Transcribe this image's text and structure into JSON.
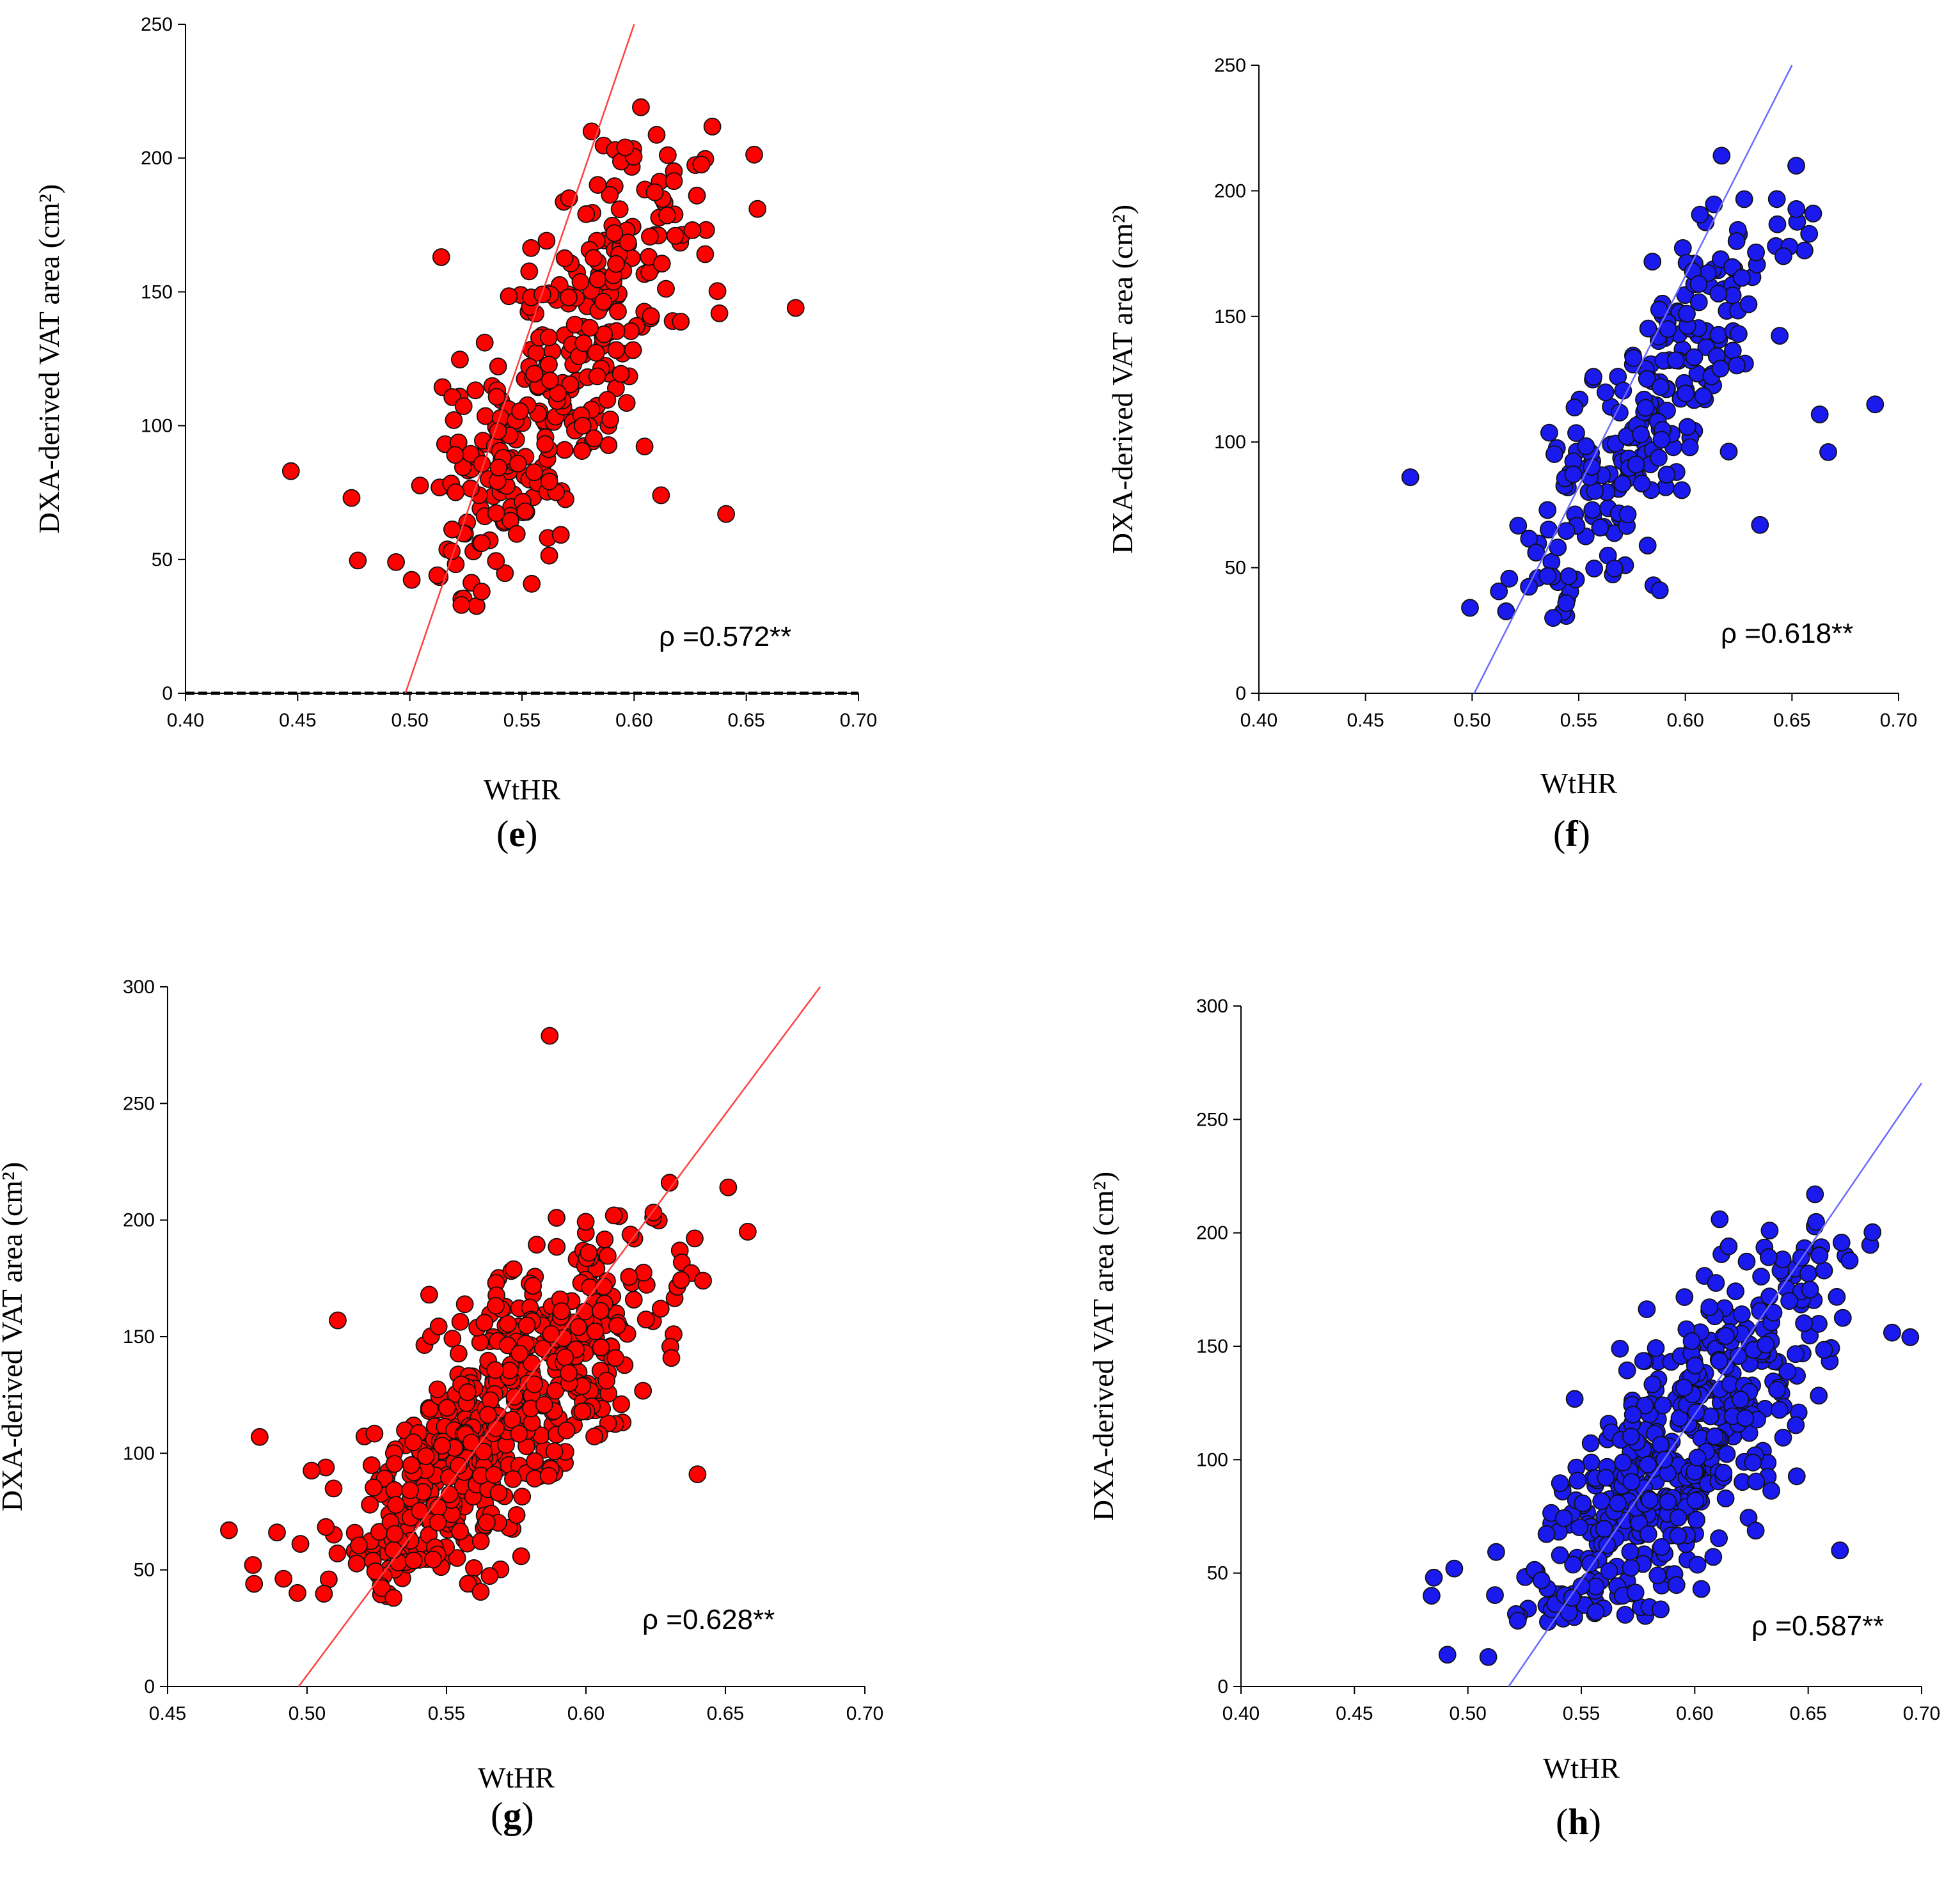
{
  "chart_data": [
    {
      "id": "e",
      "type": "scatter",
      "panel_label": "e",
      "color": "#ff0000",
      "line_color": "#ff4040",
      "xlabel": "WtHR",
      "ylabel": "DXA-derived VAT area (cm²)",
      "xlim": [
        0.4,
        0.7
      ],
      "ylim": [
        0,
        250
      ],
      "xticks": [
        "0.40",
        "0.45",
        "0.50",
        "0.55",
        "0.60",
        "0.65",
        "0.70"
      ],
      "yticks": [
        "0",
        "50",
        "100",
        "150",
        "200",
        "250"
      ],
      "annotation": "ρ =0.572**",
      "fit_line": {
        "x": [
          0.498,
          0.6
        ],
        "y": [
          0,
          250
        ]
      },
      "zero_line": true,
      "n_points": 320,
      "seed": 11,
      "cloud": {
        "x_mean": 0.565,
        "x_sd": 0.033,
        "slope": 1300,
        "intercept": -620,
        "noise_sd": 29,
        "x_min": 0.46,
        "x_max": 0.665,
        "y_min": 32,
        "y_max": 212
      },
      "points": [
        [
          0.447,
          83
        ],
        [
          0.672,
          144
        ],
        [
          0.655,
          181
        ],
        [
          0.641,
          67
        ],
        [
          0.603,
          219
        ],
        [
          0.581,
          210
        ],
        [
          0.596,
          204
        ],
        [
          0.628,
          186
        ],
        [
          0.532,
          38
        ],
        [
          0.523,
          33
        ],
        [
          0.474,
          73
        ],
        [
          0.638,
          142
        ],
        [
          0.612,
          74
        ],
        [
          0.571,
          185
        ],
        [
          0.514,
          163
        ]
      ]
    },
    {
      "id": "f",
      "type": "scatter",
      "panel_label": "f",
      "color": "#1a1aee",
      "line_color": "#6b6bff",
      "xlabel": "WtHR",
      "ylabel": "DXA-derived VAT area (cm²)",
      "xlim": [
        0.4,
        0.7
      ],
      "ylim": [
        0,
        250
      ],
      "xticks": [
        "0.40",
        "0.45",
        "0.50",
        "0.55",
        "0.60",
        "0.65",
        "0.70"
      ],
      "yticks": [
        "0",
        "50",
        "100",
        "150",
        "200",
        "250"
      ],
      "annotation": "ρ =0.618**",
      "fit_line": {
        "x": [
          0.501,
          0.65
        ],
        "y": [
          0,
          250
        ]
      },
      "zero_line": false,
      "n_points": 230,
      "seed": 23,
      "cloud": {
        "x_mean": 0.585,
        "x_sd": 0.034,
        "slope": 1250,
        "intercept": -620,
        "noise_sd": 24,
        "x_min": 0.495,
        "x_max": 0.67,
        "y_min": 30,
        "y_max": 200
      },
      "points": [
        [
          0.471,
          86
        ],
        [
          0.689,
          115
        ],
        [
          0.617,
          214
        ],
        [
          0.652,
          210
        ],
        [
          0.499,
          34
        ],
        [
          0.538,
          30
        ],
        [
          0.667,
          96
        ],
        [
          0.624,
          180
        ],
        [
          0.646,
          174
        ],
        [
          0.585,
          43
        ],
        [
          0.588,
          41
        ],
        [
          0.663,
          111
        ],
        [
          0.635,
          67
        ]
      ]
    },
    {
      "id": "g",
      "type": "scatter",
      "panel_label": "g",
      "color": "#ff0000",
      "line_color": "#ff4040",
      "xlabel": "WtHR",
      "ylabel": "DXA-derived VAT area (cm²)",
      "xlim": [
        0.45,
        0.7
      ],
      "ylim": [
        0,
        300
      ],
      "xticks": [
        "0.45",
        "0.50",
        "0.55",
        "0.60",
        "0.65",
        "0.70"
      ],
      "yticks": [
        "0",
        "50",
        "100",
        "150",
        "200",
        "250",
        "300"
      ],
      "annotation": "ρ =0.628**",
      "fit_line": {
        "x": [
          0.497,
          0.684
        ],
        "y": [
          0,
          300
        ]
      },
      "zero_line": false,
      "n_points": 560,
      "seed": 37,
      "cloud": {
        "x_mean": 0.568,
        "x_sd": 0.031,
        "slope": 1150,
        "intercept": -540,
        "noise_sd": 27,
        "x_min": 0.475,
        "x_max": 0.645,
        "y_min": 38,
        "y_max": 205
      },
      "points": [
        [
          0.587,
          279
        ],
        [
          0.472,
          67
        ],
        [
          0.481,
          44
        ],
        [
          0.483,
          107
        ],
        [
          0.63,
          216
        ],
        [
          0.651,
          214
        ],
        [
          0.658,
          195
        ],
        [
          0.642,
          174
        ],
        [
          0.64,
          91
        ],
        [
          0.511,
          157
        ],
        [
          0.601,
          186
        ],
        [
          0.61,
          202
        ],
        [
          0.531,
          38
        ]
      ]
    },
    {
      "id": "h",
      "type": "scatter",
      "panel_label": "h",
      "color": "#1a1aee",
      "line_color": "#6b6bff",
      "xlabel": "WtHR",
      "ylabel": "DXA-derived VAT area (cm²)",
      "xlim": [
        0.4,
        0.7
      ],
      "ylim": [
        0,
        300
      ],
      "xticks": [
        "0.40",
        "0.45",
        "0.50",
        "0.55",
        "0.60",
        "0.65",
        "0.70"
      ],
      "yticks": [
        "0",
        "50",
        "100",
        "150",
        "200",
        "250",
        "300"
      ],
      "annotation": "ρ =0.587**",
      "fit_line": {
        "x": [
          0.518,
          0.7
        ],
        "y": [
          0,
          266
        ]
      },
      "zero_line": false,
      "n_points": 470,
      "seed": 53,
      "cloud": {
        "x_mean": 0.59,
        "x_sd": 0.036,
        "slope": 1150,
        "intercept": -580,
        "noise_sd": 29,
        "x_min": 0.495,
        "x_max": 0.69,
        "y_min": 28,
        "y_max": 205
      },
      "points": [
        [
          0.491,
          14
        ],
        [
          0.509,
          13
        ],
        [
          0.485,
          48
        ],
        [
          0.484,
          40
        ],
        [
          0.494,
          52
        ],
        [
          0.611,
          206
        ],
        [
          0.653,
          217
        ],
        [
          0.633,
          201
        ],
        [
          0.655,
          190
        ],
        [
          0.695,
          154
        ],
        [
          0.687,
          156
        ],
        [
          0.664,
          60
        ],
        [
          0.58,
          35
        ],
        [
          0.585,
          34
        ],
        [
          0.522,
          29
        ]
      ]
    }
  ]
}
